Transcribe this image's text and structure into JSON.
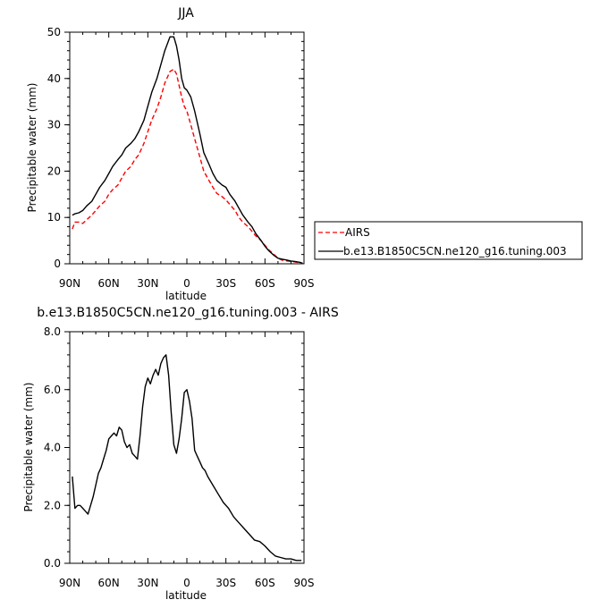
{
  "chart_data": [
    {
      "type": "line",
      "title": "JJA",
      "xlabel": "latitude",
      "ylabel": "Precipitable water (mm)",
      "xlim": [
        90,
        -90
      ],
      "ylim": [
        0,
        50
      ],
      "xticks": [
        90,
        60,
        30,
        0,
        -30,
        -60,
        -90
      ],
      "xtick_labels": [
        "90N",
        "60N",
        "30N",
        "0",
        "30S",
        "60S",
        "90S"
      ],
      "yticks": [
        0,
        10,
        20,
        30,
        40,
        50
      ],
      "ytick_labels": [
        "0",
        "10",
        "20",
        "30",
        "40",
        "50"
      ],
      "legend_position": "right",
      "series": [
        {
          "name": "AIRS",
          "color": "#ff0000",
          "dash": "dashed",
          "x": [
            88,
            86,
            83,
            80,
            77,
            73,
            70,
            67,
            63,
            60,
            57,
            53,
            50,
            47,
            43,
            40,
            37,
            33,
            30,
            27,
            23,
            20,
            17,
            13,
            10,
            8,
            6,
            4,
            2,
            0,
            -3,
            -6,
            -10,
            -13,
            -17,
            -20,
            -23,
            -27,
            -30,
            -33,
            -37,
            -40,
            -43,
            -47,
            -50,
            -53,
            -57,
            -60,
            -63,
            -67,
            -70,
            -73,
            -77,
            -80,
            -83,
            -87,
            -89
          ],
          "y": [
            7.5,
            9,
            9,
            8.7,
            9.5,
            10.5,
            11.5,
            12.5,
            13.5,
            15,
            16,
            17,
            18.5,
            20,
            21,
            22.5,
            23.5,
            26,
            28.5,
            31,
            33.5,
            36,
            39,
            41.5,
            42,
            41,
            38.5,
            36,
            34,
            33,
            30,
            27,
            23,
            20,
            18,
            16.5,
            15.2,
            14.5,
            13.8,
            12.8,
            11.5,
            10,
            9,
            8,
            7,
            6,
            5,
            4,
            3,
            2,
            1.2,
            0.8,
            0.6,
            0.5,
            0.4,
            0.2,
            0.1
          ]
        },
        {
          "name": "b.e13.B1850C5CN.ne120_g16.tuning.003",
          "color": "#000000",
          "dash": "solid",
          "x": [
            88,
            86,
            83,
            80,
            77,
            73,
            70,
            67,
            63,
            60,
            57,
            53,
            50,
            47,
            43,
            40,
            37,
            33,
            30,
            27,
            23,
            20,
            17,
            13,
            10,
            8,
            6,
            4,
            2,
            0,
            -3,
            -6,
            -10,
            -13,
            -17,
            -20,
            -23,
            -27,
            -30,
            -33,
            -37,
            -40,
            -43,
            -47,
            -50,
            -53,
            -57,
            -60,
            -63,
            -67,
            -70,
            -73,
            -77,
            -80,
            -83,
            -87,
            -89
          ],
          "y": [
            10.5,
            10.8,
            11,
            11.5,
            12.5,
            13.5,
            15,
            16.5,
            18,
            19.5,
            21,
            22.5,
            23.5,
            25,
            26,
            27,
            28.5,
            31,
            34,
            37,
            40,
            43,
            46,
            49,
            49,
            47,
            44,
            40,
            38,
            37.5,
            36,
            33,
            28,
            24,
            21.5,
            19.5,
            18,
            17,
            16.5,
            15,
            13.5,
            12,
            10.5,
            9,
            8,
            6.5,
            5,
            3.8,
            2.8,
            1.8,
            1.2,
            1,
            0.8,
            0.6,
            0.5,
            0.3,
            0.1
          ]
        }
      ]
    },
    {
      "type": "line",
      "title": "b.e13.B1850C5CN.ne120_g16.tuning.003 - AIRS",
      "xlabel": "latitude",
      "ylabel": "Precipitable water (mm)",
      "xlim": [
        90,
        -90
      ],
      "ylim": [
        0,
        8
      ],
      "xticks": [
        90,
        60,
        30,
        0,
        -30,
        -60,
        -90
      ],
      "xtick_labels": [
        "90N",
        "60N",
        "30N",
        "0",
        "30S",
        "60S",
        "90S"
      ],
      "yticks": [
        0,
        2,
        4,
        6,
        8
      ],
      "ytick_labels": [
        "0.0",
        "2.0",
        "4.0",
        "6.0",
        "8.0"
      ],
      "series": [
        {
          "color": "#000000",
          "dash": "solid",
          "x": [
            88,
            86,
            84,
            82,
            80,
            78,
            76,
            74,
            72,
            70,
            68,
            66,
            64,
            62,
            60,
            58,
            56,
            54,
            52,
            50,
            48,
            46,
            44,
            42,
            40,
            38,
            36,
            34,
            32,
            30,
            28,
            26,
            24,
            22,
            20,
            18,
            16,
            14,
            12,
            10,
            8,
            6,
            4,
            2,
            0,
            -2,
            -4,
            -6,
            -8,
            -10,
            -12,
            -14,
            -16,
            -20,
            -24,
            -28,
            -32,
            -36,
            -40,
            -44,
            -48,
            -52,
            -56,
            -60,
            -64,
            -68,
            -72,
            -76,
            -80,
            -84,
            -88
          ],
          "y": [
            3.0,
            1.9,
            2.0,
            2.0,
            1.9,
            1.8,
            1.7,
            2.0,
            2.3,
            2.7,
            3.1,
            3.3,
            3.6,
            3.9,
            4.3,
            4.4,
            4.5,
            4.4,
            4.7,
            4.6,
            4.2,
            4.0,
            4.1,
            3.8,
            3.7,
            3.6,
            4.4,
            5.4,
            6.1,
            6.4,
            6.2,
            6.5,
            6.7,
            6.5,
            6.9,
            7.1,
            7.2,
            6.5,
            5.2,
            4.1,
            3.8,
            4.3,
            5.0,
            5.9,
            6.0,
            5.6,
            5.0,
            3.9,
            3.7,
            3.5,
            3.3,
            3.2,
            3.0,
            2.7,
            2.4,
            2.1,
            1.9,
            1.6,
            1.4,
            1.2,
            1.0,
            0.8,
            0.75,
            0.6,
            0.4,
            0.25,
            0.2,
            0.15,
            0.15,
            0.1,
            0.1
          ]
        }
      ]
    }
  ]
}
